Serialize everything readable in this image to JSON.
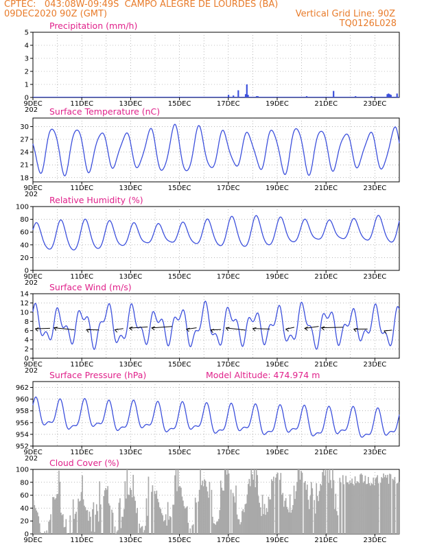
{
  "header": {
    "line1_left": "CPTEC:   043:08W-09:49S  CAMPO ALEGRE DE LOURDES (BA)",
    "line2_left": "09DEC2020 90Z (GMT)",
    "line2_right": "Vertical Grid Line: 90Z",
    "line3_right": "TQ0126L028"
  },
  "x_axis": {
    "labels": [
      "9DEC",
      "11DEC",
      "13DEC",
      "15DEC",
      "17DEC",
      "19DEC",
      "21DEC",
      "23DEC"
    ],
    "year_fragment": "202",
    "range_days": [
      0,
      15
    ]
  },
  "colors": {
    "series": "#3b4fdc",
    "title": "#e0208a",
    "header": "#e87b2a",
    "grid": "#888888",
    "cloud": "#a9a9a9"
  },
  "chart_data": [
    {
      "type": "bar",
      "id": "precip",
      "title": "Precipitation (mm/h)",
      "ylim": [
        0,
        5
      ],
      "yticks": [
        0,
        1,
        2,
        3,
        4,
        5
      ],
      "x_days": [
        8.0,
        8.2,
        8.4,
        8.7,
        8.75,
        8.8,
        9.15,
        9.2,
        11.2,
        12.3,
        13.2,
        13.85,
        14.5,
        14.55,
        14.6,
        14.65,
        14.9
      ],
      "values": [
        0.2,
        0.15,
        0.55,
        0.25,
        1.0,
        0.2,
        0.1,
        0.1,
        0.1,
        0.5,
        0.1,
        0.1,
        0.25,
        0.3,
        0.25,
        0.2,
        0.3
      ]
    },
    {
      "type": "line",
      "id": "temp",
      "title": "Surface Temperature (nC)",
      "ylim": [
        17,
        32
      ],
      "yticks": [
        18,
        21,
        24,
        27,
        30
      ],
      "mean": 24.5,
      "amp": 5.5,
      "peak_phase": 0.8,
      "x_days": [
        0,
        15
      ]
    },
    {
      "type": "line",
      "id": "rh",
      "title": "Relative Humidity (%)",
      "ylim": [
        0,
        100
      ],
      "yticks": [
        0,
        20,
        40,
        60,
        80,
        100
      ],
      "mean": 52,
      "amp": 24,
      "peak_phase": 0.3,
      "x_days": [
        0,
        15
      ]
    },
    {
      "type": "line",
      "id": "wind",
      "title": "Surface Wind (m/s)",
      "ylim": [
        0,
        14
      ],
      "yticks": [
        0,
        2,
        4,
        6,
        8,
        10,
        12,
        14
      ],
      "mean": 7,
      "amp": 3.2,
      "peak_phase": 0.55,
      "arrow_level": 6.5,
      "x_days": [
        0,
        15
      ]
    },
    {
      "type": "line",
      "id": "pres",
      "title": "Surface Pressure (hPa)",
      "subtitle": "Model Altitude: 474.974 m",
      "ylim": [
        952,
        963
      ],
      "yticks": [
        952,
        954,
        956,
        958,
        960,
        962
      ],
      "mean": 957.2,
      "amp": 2.2,
      "trend_per_day": -0.12,
      "x_days": [
        0,
        15
      ]
    },
    {
      "type": "area",
      "id": "cloud",
      "title": "Cloud Cover (%)",
      "ylim": [
        0,
        100
      ],
      "yticks": [
        0,
        20,
        40,
        60,
        80,
        100
      ],
      "x_days": [
        0,
        15
      ]
    }
  ]
}
